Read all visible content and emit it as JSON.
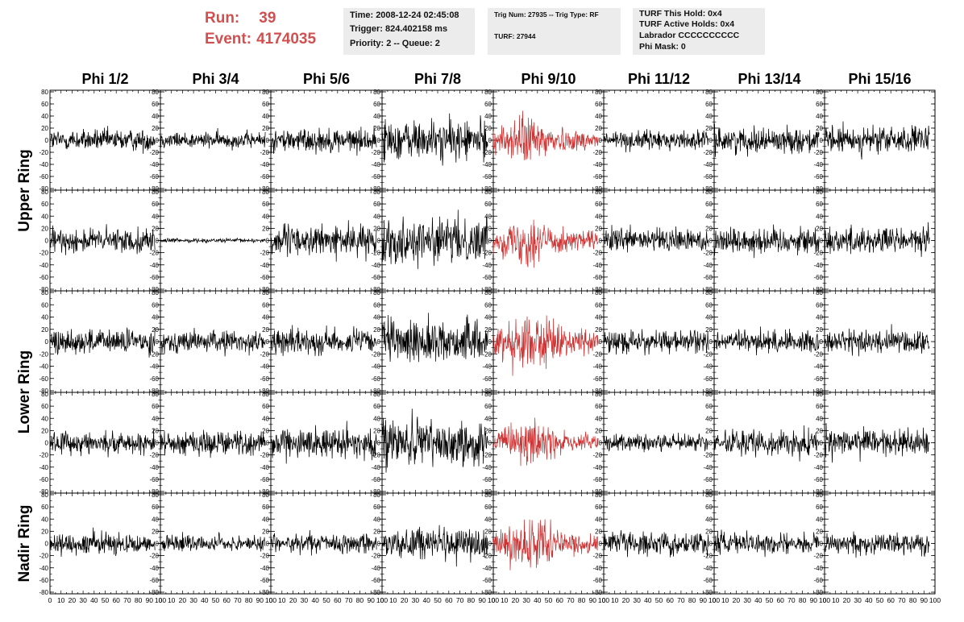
{
  "header": {
    "run_label": "Run:",
    "run_value": "39",
    "event_label": "Event:",
    "event_value": "4174035"
  },
  "info": {
    "time": "Time: 2008-12-24 02:45:08",
    "trigger": "Trigger: 824.402158 ms",
    "priority": "Priority: 2 -- Queue: 2",
    "trig_num": "Trig Num: 27935 -- Trig Type: RF",
    "turf": "TURF: 27944",
    "turf_this_hold": "TURF This Hold: 0x4",
    "turf_active_holds": "TURF Active Holds: 0x4",
    "labrador": "Labrador CCCCCCCCCC",
    "phi_mask": "Phi Mask: 0"
  },
  "colors": {
    "trace_default": "#000000",
    "trace_highlight": "#cc3333",
    "header_text": "#d05050",
    "info_bg": "#ececec"
  },
  "chart_data": {
    "type": "line",
    "columns": [
      "Phi 1/2",
      "Phi 3/4",
      "Phi 5/6",
      "Phi 7/8",
      "Phi 9/10",
      "Phi 11/12",
      "Phi 13/14",
      "Phi 15/16"
    ],
    "row_groups": [
      {
        "label": "Upper Ring",
        "rows": 2
      },
      {
        "label": "Lower Ring",
        "rows": 2
      },
      {
        "label": "Nadir Ring",
        "rows": 1
      }
    ],
    "xlim": [
      0,
      100
    ],
    "ylim": [
      -80,
      80
    ],
    "x_ticks": [
      "0",
      "10",
      "20",
      "30",
      "40",
      "50",
      "60",
      "70",
      "80",
      "90",
      "100"
    ],
    "y_ticks": [
      "80",
      "60",
      "40",
      "20",
      "0",
      "-20",
      "-40",
      "-60",
      "-80"
    ],
    "highlight_column": 4,
    "trace_x_range": [
      0,
      95
    ],
    "amplitude": [
      [
        16,
        12,
        18,
        30,
        26,
        14,
        18,
        20
      ],
      [
        18,
        3,
        22,
        32,
        26,
        18,
        20,
        20
      ],
      [
        18,
        16,
        18,
        30,
        32,
        16,
        16,
        18
      ],
      [
        16,
        18,
        22,
        34,
        24,
        14,
        18,
        20
      ],
      [
        16,
        12,
        14,
        24,
        26,
        16,
        16,
        16
      ]
    ],
    "grid": false,
    "legend": "none"
  }
}
